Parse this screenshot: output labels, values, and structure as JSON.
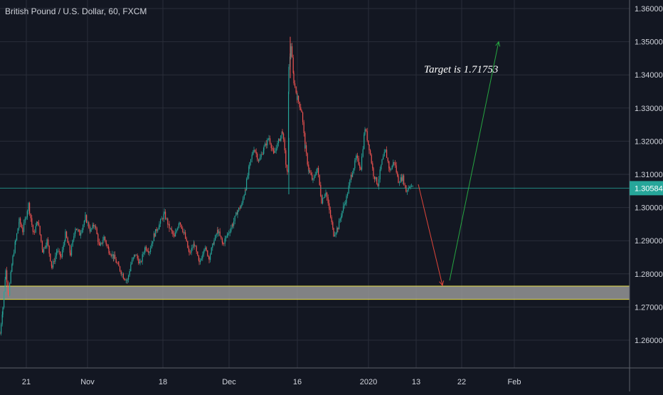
{
  "header": {
    "title": "British Pound / U.S. Dollar, 60, FXCM"
  },
  "chart_data": {
    "type": "candlestick",
    "title": "British Pound / U.S. Dollar, 60, FXCM",
    "ylim": [
      1.2565,
      1.3625
    ],
    "y_ticks": [
      "1.36000",
      "1.35000",
      "1.34000",
      "1.33000",
      "1.32000",
      "1.31000",
      "1.30000",
      "1.29000",
      "1.28000",
      "1.27000",
      "1.26000"
    ],
    "x_ticks": [
      "21",
      "Nov",
      "18",
      "Dec",
      "16",
      "2020",
      "13",
      "22",
      "Feb"
    ],
    "last_price": {
      "label": "1.30584",
      "value": 1.30584
    },
    "price_path": [
      [
        1.262,
        0
      ],
      [
        1.27,
        4
      ],
      [
        1.281,
        8
      ],
      [
        1.274,
        12
      ],
      [
        1.285,
        18
      ],
      [
        1.29,
        22
      ],
      [
        1.296,
        27
      ],
      [
        1.293,
        32
      ],
      [
        1.301,
        40
      ],
      [
        1.292,
        47
      ],
      [
        1.296,
        53
      ],
      [
        1.287,
        60
      ],
      [
        1.29,
        66
      ],
      [
        1.282,
        73
      ],
      [
        1.287,
        80
      ],
      [
        1.285,
        86
      ],
      [
        1.292,
        92
      ],
      [
        1.286,
        99
      ],
      [
        1.294,
        106
      ],
      [
        1.292,
        112
      ],
      [
        1.297,
        120
      ],
      [
        1.293,
        127
      ],
      [
        1.295,
        133
      ],
      [
        1.288,
        140
      ],
      [
        1.291,
        146
      ],
      [
        1.287,
        153
      ],
      [
        1.285,
        160
      ],
      [
        1.282,
        167
      ],
      [
        1.279,
        174
      ],
      [
        1.278,
        179
      ],
      [
        1.283,
        184
      ],
      [
        1.286,
        190
      ],
      [
        1.283,
        197
      ],
      [
        1.288,
        204
      ],
      [
        1.287,
        210
      ],
      [
        1.292,
        217
      ],
      [
        1.295,
        224
      ],
      [
        1.298,
        231
      ],
      [
        1.294,
        238
      ],
      [
        1.291,
        245
      ],
      [
        1.296,
        252
      ],
      [
        1.292,
        259
      ],
      [
        1.286,
        266
      ],
      [
        1.289,
        273
      ],
      [
        1.283,
        280
      ],
      [
        1.288,
        287
      ],
      [
        1.285,
        294
      ],
      [
        1.29,
        301
      ],
      [
        1.293,
        306
      ],
      [
        1.289,
        313
      ],
      [
        1.292,
        320
      ],
      [
        1.295,
        327
      ],
      [
        1.299,
        334
      ],
      [
        1.301,
        340
      ],
      [
        1.306,
        345
      ],
      [
        1.313,
        351
      ],
      [
        1.318,
        357
      ],
      [
        1.314,
        364
      ],
      [
        1.318,
        371
      ],
      [
        1.321,
        378
      ],
      [
        1.316,
        385
      ],
      [
        1.319,
        390
      ],
      [
        1.323,
        397
      ],
      [
        1.313,
        402
      ],
      [
        1.31,
        404
      ],
      [
        1.342,
        406
      ],
      [
        1.349,
        409
      ],
      [
        1.338,
        413
      ],
      [
        1.333,
        418
      ],
      [
        1.329,
        424
      ],
      [
        1.318,
        429
      ],
      [
        1.311,
        434
      ],
      [
        1.308,
        440
      ],
      [
        1.312,
        446
      ],
      [
        1.302,
        452
      ],
      [
        1.305,
        458
      ],
      [
        1.299,
        463
      ],
      [
        1.292,
        469
      ],
      [
        1.294,
        475
      ],
      [
        1.299,
        481
      ],
      [
        1.303,
        487
      ],
      [
        1.31,
        494
      ],
      [
        1.315,
        501
      ],
      [
        1.312,
        507
      ],
      [
        1.324,
        513
      ],
      [
        1.318,
        519
      ],
      [
        1.31,
        525
      ],
      [
        1.307,
        531
      ],
      [
        1.314,
        537
      ],
      [
        1.317,
        542
      ],
      [
        1.311,
        548
      ],
      [
        1.314,
        554
      ],
      [
        1.308,
        560
      ],
      [
        1.309,
        566
      ],
      [
        1.305,
        571
      ],
      [
        1.307,
        577
      ],
      [
        1.30584,
        581
      ]
    ],
    "support_zone": [
      1.2723,
      1.2763
    ],
    "projection": {
      "down": {
        "from": [
          1.307,
          588
        ],
        "to": [
          1.2765,
          622
        ],
        "color": "#e0453a"
      },
      "up": {
        "from": [
          1.278,
          632
        ],
        "to": [
          1.35,
          701
        ],
        "color": "#26a641"
      }
    },
    "annotations": [
      {
        "text": "Target is 1.71753"
      }
    ],
    "colors": {
      "background": "#131722",
      "up": "#26a69a",
      "down": "#ef5350",
      "grid": "#2a2e39",
      "zone_border": "#e8e04a",
      "price_tag": "#26a69a"
    }
  }
}
